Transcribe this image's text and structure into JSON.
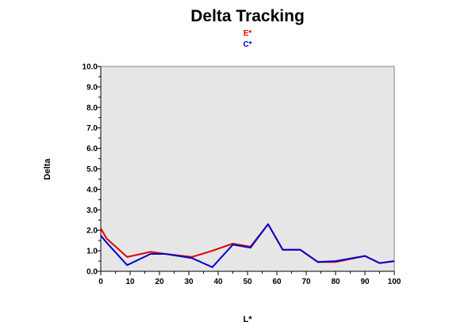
{
  "chart_data": {
    "type": "line",
    "title": "Delta Tracking",
    "xlabel": "L*",
    "ylabel": "Delta",
    "xlim": [
      0,
      100
    ],
    "ylim": [
      0,
      10
    ],
    "x_ticks": [
      "0",
      "10",
      "20",
      "30",
      "40",
      "50",
      "60",
      "70",
      "80",
      "90",
      "100"
    ],
    "y_ticks": [
      "0.0",
      "1.0",
      "2.0",
      "3.0",
      "4.0",
      "5.0",
      "6.0",
      "7.0",
      "8.0",
      "9.0",
      "10.0"
    ],
    "grid": false,
    "plot_background": "#e6e6e6",
    "legend_position": "top-center",
    "series": [
      {
        "name": "E*",
        "color": "#e00000",
        "x": [
          0,
          2,
          9,
          17,
          22,
          31,
          38,
          45,
          51,
          57,
          62,
          68,
          74,
          80,
          90,
          95,
          100
        ],
        "y": [
          2.1,
          1.6,
          0.7,
          0.95,
          0.85,
          0.7,
          1.0,
          1.35,
          1.2,
          2.3,
          1.05,
          1.05,
          0.45,
          0.45,
          0.75,
          0.4,
          0.5
        ]
      },
      {
        "name": "C*",
        "color": "#0000d0",
        "x": [
          0,
          2,
          9,
          17,
          22,
          31,
          38,
          45,
          51,
          57,
          62,
          68,
          74,
          80,
          90,
          95,
          100
        ],
        "y": [
          1.75,
          1.4,
          0.3,
          0.85,
          0.85,
          0.65,
          0.2,
          1.3,
          1.15,
          2.3,
          1.05,
          1.05,
          0.45,
          0.5,
          0.75,
          0.4,
          0.5
        ]
      }
    ]
  }
}
